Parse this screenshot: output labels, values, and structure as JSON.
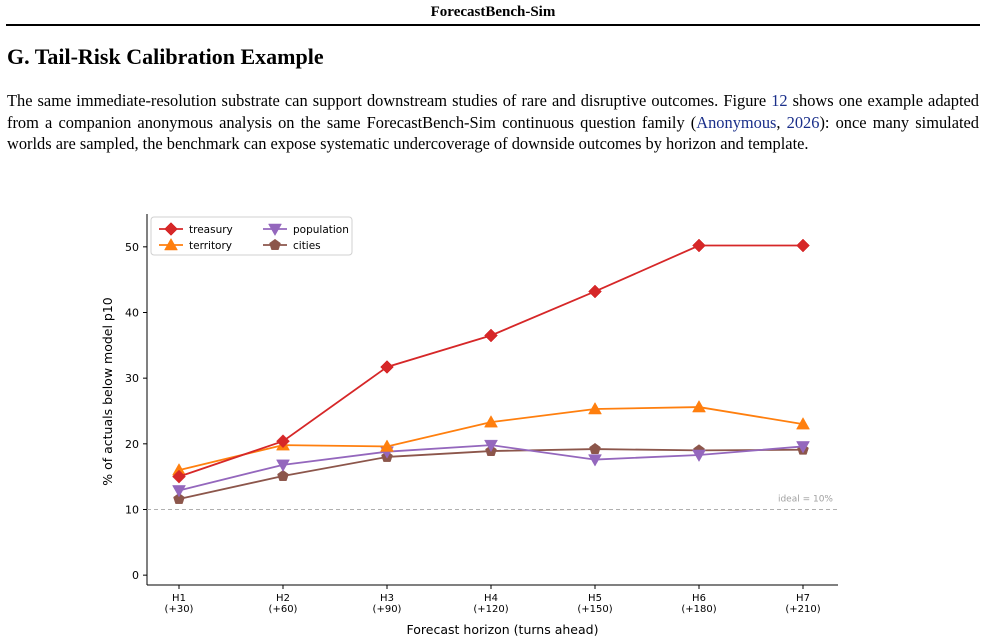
{
  "header": {
    "running_title": "ForecastBench-Sim"
  },
  "section": {
    "title": "G. Tail-Risk Calibration Example"
  },
  "paragraph": {
    "t1": "The same immediate-resolution substrate can support downstream studies of rare and disruptive outcomes. Figure ",
    "fig_ref": "12",
    "t2": " shows one example adapted from a companion anonymous analysis on the same ForecastBench-Sim continuous question family (",
    "cite_author": "Anonymous",
    "t3": ", ",
    "cite_year": "2026",
    "t4": "): once many simulated worlds are sampled, the benchmark can expose systematic undercoverage of downside outcomes by horizon and template."
  },
  "chart_data": {
    "type": "line",
    "x_categories": [
      "H1\n(+30)",
      "H2\n(+60)",
      "H3\n(+90)",
      "H4\n(+120)",
      "H5\n(+150)",
      "H6\n(+180)",
      "H7\n(+210)"
    ],
    "xlabel": "Forecast horizon (turns ahead)",
    "ylabel": "% of actuals below model p10",
    "ylim": [
      -1.5,
      55
    ],
    "yticks": [
      0,
      10,
      20,
      30,
      40,
      50
    ],
    "grid": false,
    "legend_position": "top-left",
    "reference_line": {
      "value": 10,
      "label": "ideal = 10%",
      "color": "#b0b0b0"
    },
    "series": [
      {
        "name": "treasury",
        "color": "#d62728",
        "marker": "diamond",
        "values": [
          15.0,
          20.4,
          31.7,
          36.5,
          43.2,
          50.2,
          50.2
        ]
      },
      {
        "name": "territory",
        "color": "#ff7f0e",
        "marker": "triangle-up",
        "values": [
          16.0,
          19.8,
          19.6,
          23.3,
          25.3,
          25.6,
          23.0
        ]
      },
      {
        "name": "population",
        "color": "#9467bd",
        "marker": "triangle-down",
        "values": [
          12.9,
          16.8,
          18.8,
          19.8,
          17.6,
          18.3,
          19.6
        ]
      },
      {
        "name": "cities",
        "color": "#8c564b",
        "marker": "pentagon",
        "values": [
          11.6,
          15.1,
          18.0,
          18.9,
          19.2,
          19.0,
          19.1
        ]
      }
    ]
  }
}
